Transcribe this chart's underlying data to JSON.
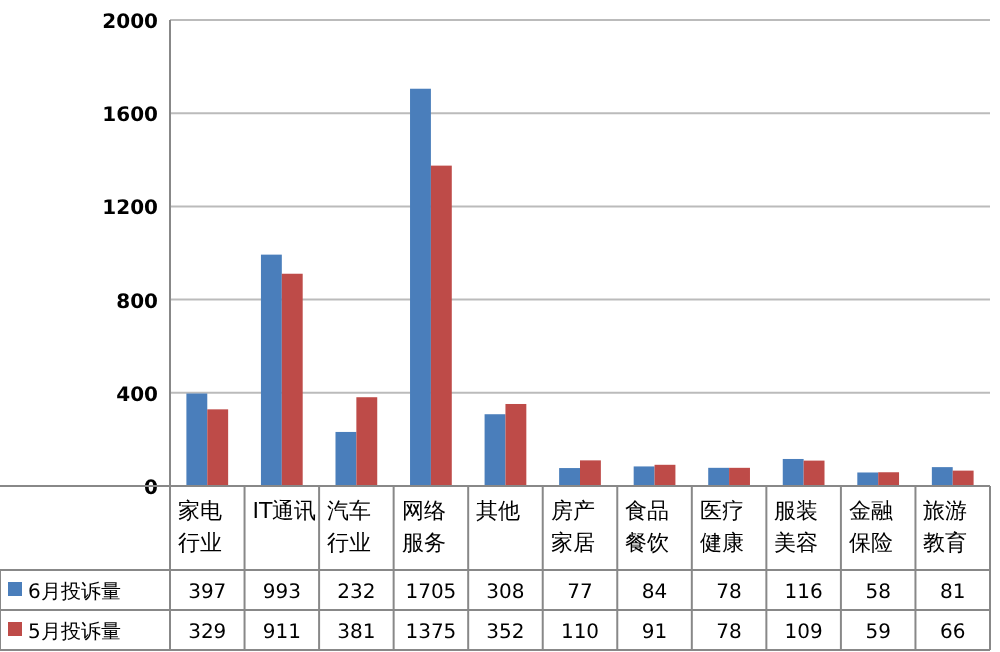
{
  "chart_data": {
    "type": "bar",
    "categories": [
      "家电行业",
      "IT通讯",
      "汽车行业",
      "网络服务",
      "其他",
      "房产家居",
      "食品餐饮",
      "医疗健康",
      "服装美容",
      "金融保险",
      "旅游教育"
    ],
    "series": [
      {
        "name": "6月投诉量",
        "color": "#4a7ebb",
        "values": [
          397,
          993,
          232,
          1705,
          308,
          77,
          84,
          78,
          116,
          58,
          81
        ]
      },
      {
        "name": "5月投诉量",
        "color": "#be4b48",
        "values": [
          329,
          911,
          381,
          1375,
          352,
          110,
          91,
          78,
          109,
          59,
          66
        ]
      }
    ],
    "ylim": [
      0,
      2000
    ],
    "yticks": [
      0,
      400,
      800,
      1200,
      1600,
      2000
    ],
    "grid": "y",
    "legend": "bottom",
    "data_labels": true
  }
}
